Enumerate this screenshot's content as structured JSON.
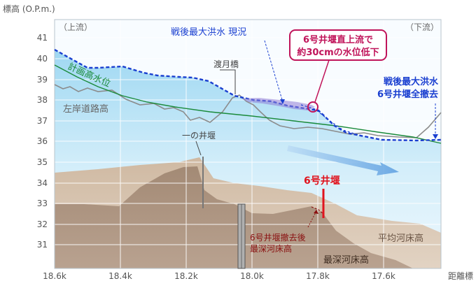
{
  "axes": {
    "y_title": "標高 (O.P.m.)",
    "x_title": "距離標",
    "y_ticks": [
      "41",
      "40",
      "39",
      "38",
      "37",
      "36",
      "35",
      "34",
      "33",
      "32",
      "31"
    ],
    "x_ticks": [
      "18.6k",
      "18.4k",
      "18.2k",
      "18.0k",
      "17.8k",
      "17.6k"
    ]
  },
  "labels": {
    "upstream": "（上流）",
    "downstream": "（下流）",
    "flood_current": "戦後最大洪水  現況",
    "planned_high_water": "計画高水位",
    "left_bank_road": "左岸道路高",
    "watsuki_bridge": "渡月橋",
    "ichinoi_weir": "一の井堰",
    "weir6": "6号井堰",
    "deepest_after_removal_line1": "6号井堰撤去後",
    "deepest_after_removal_line2": "最深河床高",
    "avg_bed": "平均河床高",
    "deepest_bed": "最深河床高"
  },
  "callout": {
    "line1": "6号井堰直上流で",
    "line2": "約30cmの水位低下"
  },
  "flood_removed": {
    "line1": "戦後最大洪水",
    "line2": "6号井堰全撤去"
  },
  "colors": {
    "flood_current": "#1a3fd0",
    "planned": "#1a8a3a",
    "road": "#888888",
    "weir6": "#e0141e",
    "callout": "#c0145a",
    "flood_removed_label": "#1a3fd0"
  }
}
